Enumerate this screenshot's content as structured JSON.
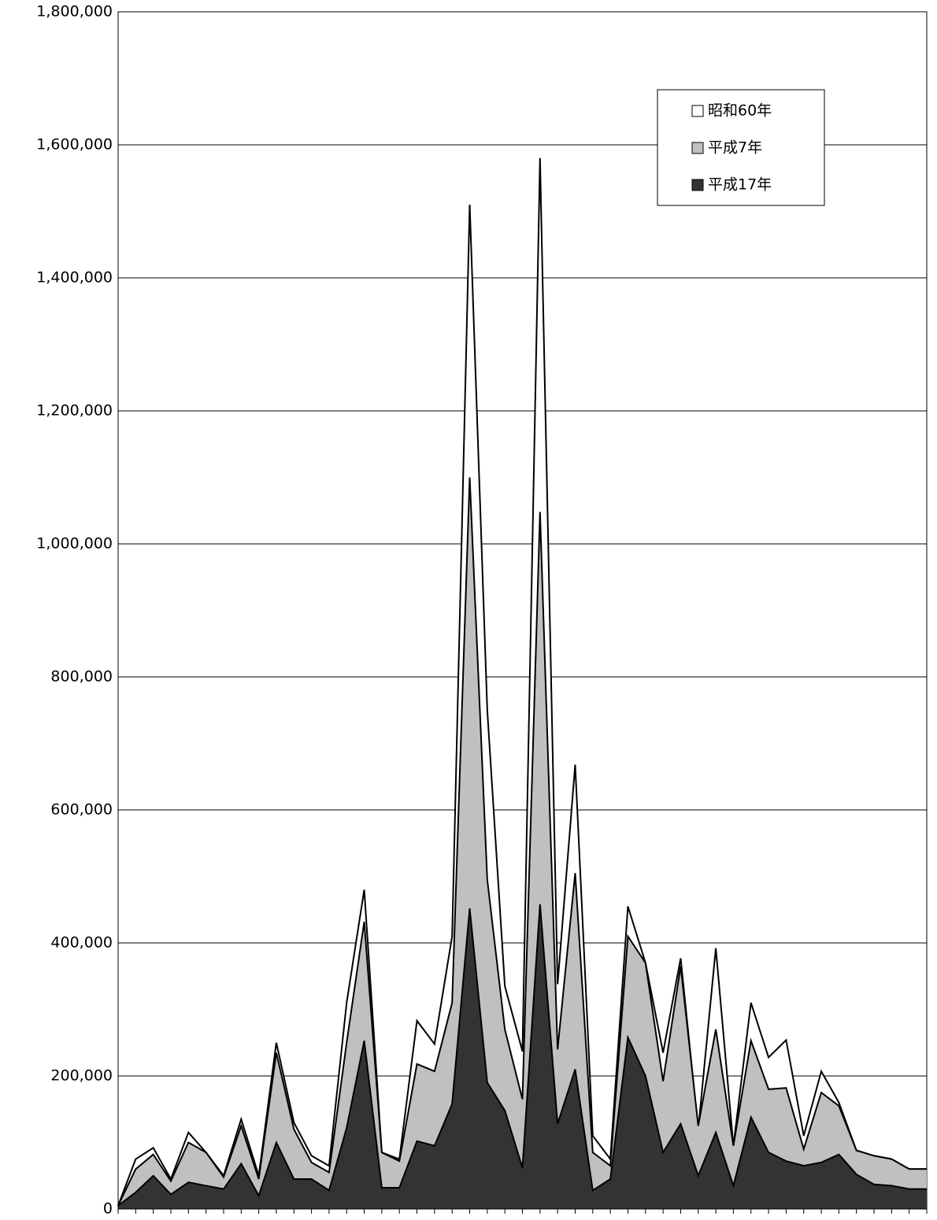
{
  "chart_data": {
    "type": "area",
    "categories": [
      null,
      null,
      null,
      null,
      null,
      null,
      null,
      null,
      null,
      null,
      null,
      null,
      null,
      null,
      null,
      null,
      null,
      null,
      null,
      null,
      null,
      null,
      null,
      null,
      null,
      null,
      null,
      null,
      null,
      null,
      null,
      null,
      null,
      null,
      null,
      null,
      null,
      null,
      null,
      null,
      null,
      null,
      null,
      null,
      null,
      null,
      null
    ],
    "series": [
      {
        "name": "昭和60年",
        "color": "#ffffff",
        "values": [
          5000,
          75000,
          92000,
          45000,
          115000,
          85000,
          50000,
          135000,
          50000,
          250000,
          130000,
          80000,
          65000,
          310000,
          480000,
          85000,
          75000,
          283000,
          248000,
          410000,
          1510000,
          750000,
          335000,
          237000,
          1580000,
          338000,
          668000,
          110000,
          75000,
          455000,
          370000,
          235000,
          377000,
          120000,
          392000,
          95000,
          310000,
          228000,
          254000,
          110000,
          207000,
          160000,
          88000,
          80000,
          75000,
          60000,
          60000
        ]
      },
      {
        "name": "平成7年",
        "color": "#c0c0c0",
        "values": [
          5000,
          60000,
          82000,
          42000,
          100000,
          85000,
          48000,
          125000,
          45000,
          235000,
          120000,
          70000,
          55000,
          250000,
          432000,
          85000,
          72000,
          218000,
          207000,
          310000,
          1100000,
          495000,
          270000,
          165000,
          1048000,
          240000,
          505000,
          85000,
          65000,
          410000,
          370000,
          192000,
          365000,
          125000,
          270000,
          95000,
          253000,
          180000,
          182000,
          90000,
          175000,
          155000,
          88000,
          80000,
          75000,
          60000,
          60000
        ]
      },
      {
        "name": "平成17年",
        "color": "#333333",
        "values": [
          5000,
          25000,
          50000,
          22000,
          40000,
          35000,
          30000,
          68000,
          20000,
          100000,
          45000,
          45000,
          28000,
          122000,
          253000,
          32000,
          32000,
          102000,
          95000,
          158000,
          452000,
          190000,
          148000,
          62000,
          458000,
          128000,
          210000,
          28000,
          45000,
          258000,
          200000,
          85000,
          128000,
          50000,
          115000,
          35000,
          138000,
          85000,
          72000,
          65000,
          70000,
          82000,
          52000,
          37000,
          35000,
          30000,
          30000
        ]
      }
    ],
    "ylim": [
      0,
      1800000
    ],
    "yticks": [
      0,
      {
        "value": 200000,
        "label": "200,000"
      },
      {
        "value": 400000,
        "label": "400,000"
      },
      {
        "value": 600000,
        "label": "600,000"
      },
      {
        "value": 800000,
        "label": "800,000"
      },
      {
        "value": 1000000,
        "label": "1,000,000"
      },
      {
        "value": 1200000,
        "label": "1,200,000"
      },
      {
        "value": 1400000,
        "label": "1,400,000"
      },
      {
        "value": 1600000,
        "label": "1,600,000"
      },
      {
        "value": 1800000,
        "label": "1,800,000"
      }
    ],
    "grid": true,
    "legend": "upper-right"
  }
}
